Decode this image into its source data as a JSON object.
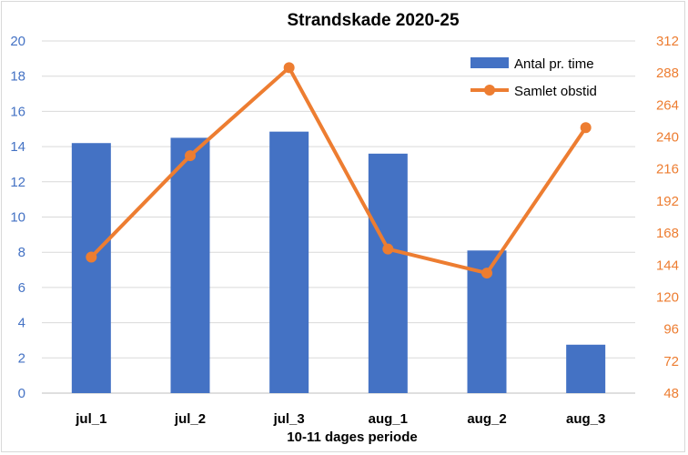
{
  "chart_data": {
    "type": "bar+line",
    "title": "Strandskade 2020-25",
    "xlabel": "10-11 dages periode",
    "categories": [
      "jul_1",
      "jul_2",
      "jul_3",
      "aug_1",
      "aug_2",
      "aug_3"
    ],
    "series": [
      {
        "name": "Antal pr. time",
        "type": "bar",
        "axis": "left",
        "color": "#4472c4",
        "values": [
          14.2,
          14.5,
          14.85,
          13.6,
          8.1,
          2.75
        ]
      },
      {
        "name": "Samlet obstid",
        "type": "line",
        "axis": "right",
        "color": "#ed7d31",
        "values": [
          150,
          226,
          292,
          156,
          138,
          247
        ]
      }
    ],
    "y_left": {
      "min": 0,
      "max": 20,
      "step": 2,
      "color": "#4472c4",
      "ticks": [
        "0",
        "2",
        "4",
        "6",
        "8",
        "10",
        "12",
        "14",
        "16",
        "18",
        "20"
      ]
    },
    "y_right": {
      "min": 48,
      "max": 312,
      "step": 24,
      "color": "#ed7d31",
      "ticks": [
        "48",
        "72",
        "96",
        "120",
        "144",
        "168",
        "192",
        "216",
        "240",
        "264",
        "288",
        "312"
      ]
    },
    "legend": {
      "position": "top-right",
      "entries": [
        "Antal pr. time",
        "Samlet obstid"
      ]
    },
    "grid": true
  }
}
